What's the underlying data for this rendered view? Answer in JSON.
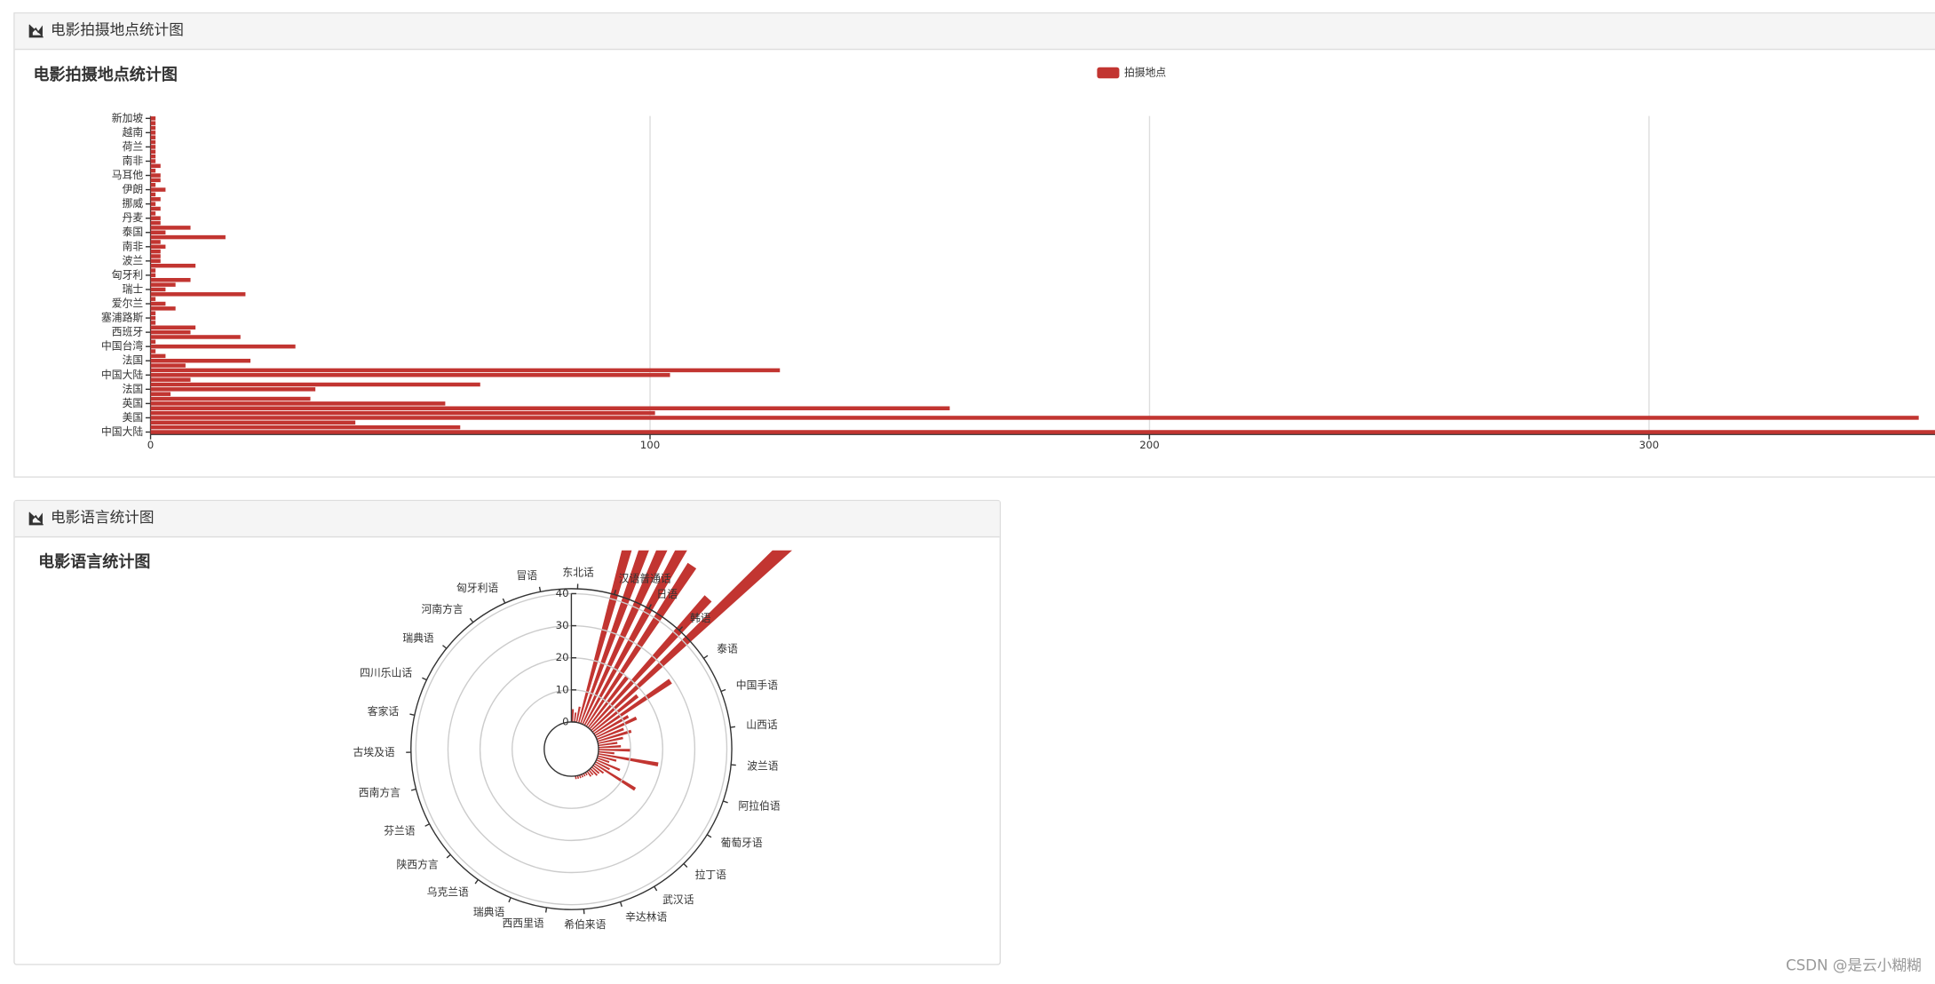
{
  "panels": [
    {
      "header": "电影拍摄地点统计图"
    },
    {
      "header": "电影语言统计图"
    }
  ],
  "chart_data": [
    {
      "type": "bar",
      "orientation": "horizontal",
      "title": "电影拍摄地点统计图",
      "legend": "top",
      "categories": [
        "中国大陆",
        null,
        null,
        "美国",
        null,
        null,
        "英国",
        null,
        null,
        "法国",
        null,
        null,
        "中国大陆",
        null,
        null,
        "法国",
        null,
        null,
        "中国台湾",
        null,
        null,
        "西班牙",
        null,
        null,
        "塞浦路斯",
        null,
        null,
        "爱尔兰",
        null,
        null,
        "瑞士",
        null,
        null,
        "匈牙利",
        null,
        null,
        "波兰",
        null,
        null,
        "南非",
        null,
        null,
        "泰国",
        null,
        null,
        "丹麦",
        null,
        null,
        "挪威",
        null,
        null,
        "伊朗",
        null,
        null,
        "马耳他",
        null,
        null,
        "南非",
        null,
        null,
        "荷兰",
        null,
        null,
        "越南",
        null,
        null,
        "新加坡"
      ],
      "series": [
        {
          "name": "拍摄地点",
          "color": "#c23531",
          "values": [
            380,
            62,
            41,
            354,
            101,
            160,
            59,
            32,
            4,
            33,
            66,
            8,
            104,
            126,
            7,
            20,
            3,
            1,
            29,
            1,
            18,
            8,
            9,
            1,
            1,
            1,
            5,
            3,
            1,
            19,
            3,
            5,
            8,
            1,
            1,
            9,
            2,
            2,
            2,
            3,
            2,
            15,
            3,
            8,
            2,
            2,
            1,
            2,
            1,
            2,
            1,
            3,
            1,
            2,
            2,
            1,
            2,
            1,
            1,
            1,
            1,
            1,
            1,
            1,
            1,
            1,
            1
          ]
        }
      ],
      "xlim": [
        0,
        400
      ],
      "xticks": [
        0,
        100,
        200,
        300
      ],
      "grid": true
    },
    {
      "type": "polar_bar",
      "title": "电影语言统计图",
      "categories": [
        "东北话",
        null,
        null,
        "汉语普通话",
        null,
        null,
        "日语",
        null,
        null,
        "韩语",
        null,
        null,
        "泰语",
        null,
        null,
        "中国手语",
        null,
        null,
        "山西话",
        null,
        null,
        "波兰语",
        null,
        null,
        "阿拉伯语",
        null,
        null,
        "葡萄牙语",
        null,
        null,
        "拉丁语",
        null,
        null,
        "武汉话",
        null,
        null,
        "辛达林语",
        null,
        null,
        "希伯来语",
        null,
        null,
        "西西里语",
        null,
        null,
        "瑞典语",
        null,
        null,
        "乌克兰语",
        null,
        null,
        "陕西方言",
        null,
        null,
        "芬兰语",
        null,
        null,
        "西南方言",
        null,
        null,
        "古埃及语",
        null,
        null,
        "客家话",
        null,
        null,
        "四川乐山话",
        null,
        null,
        "瑞典语",
        null,
        null,
        "河南方言",
        null,
        null,
        "匈牙利语",
        null,
        null,
        "冒语",
        null,
        null
      ],
      "color": "#c23531",
      "values": [
        4,
        3,
        5,
        70,
        85,
        65,
        75,
        60,
        20,
        55,
        90,
        18,
        29,
        12,
        14,
        9,
        11,
        8,
        6,
        7,
        10,
        5,
        19,
        6,
        4,
        8,
        5,
        15,
        4,
        3,
        3,
        2,
        2,
        1,
        1,
        1,
        1,
        1,
        1,
        0,
        0,
        0,
        0,
        0,
        0,
        0,
        0,
        0,
        0,
        0,
        0,
        0,
        0,
        0,
        0,
        0,
        0,
        0,
        0,
        0,
        0,
        0,
        0,
        0,
        0,
        0,
        0,
        0,
        0,
        0,
        0,
        0,
        0,
        0,
        0,
        0,
        0,
        0,
        0,
        0,
        0
      ],
      "ylim": [
        0,
        40
      ],
      "yticks": [
        0,
        10,
        20,
        30,
        40
      ],
      "grid": true
    }
  ],
  "watermark": "CSDN @是云小糊糊"
}
